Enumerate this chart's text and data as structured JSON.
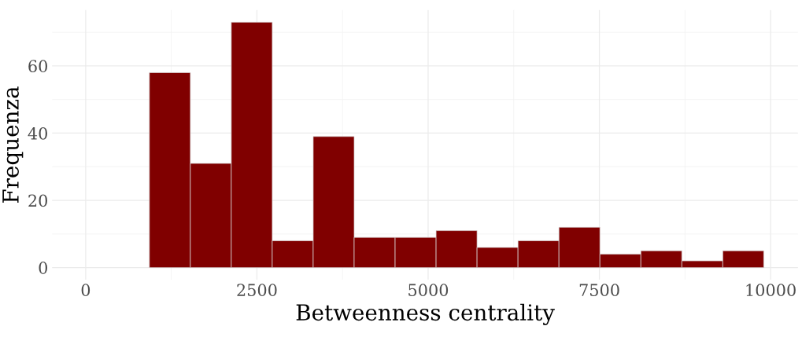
{
  "chart_data": {
    "type": "histogram",
    "xlabel": "Betweenness centrality",
    "ylabel": "Frequenza",
    "color": "#800000",
    "bins": [
      930,
      1528,
      2126,
      2724,
      3322,
      3920,
      4518,
      5116,
      5714,
      6312,
      6910,
      7508,
      8106,
      8704,
      9302,
      9900
    ],
    "values": [
      58,
      31,
      73,
      8,
      39,
      9,
      9,
      11,
      6,
      8,
      12,
      4,
      5,
      2,
      5
    ],
    "xlim": [
      -490,
      10400
    ],
    "ylim": [
      -3.6,
      76.6
    ],
    "xticks": [
      0,
      2500,
      5000,
      7500,
      10000
    ],
    "yticks": [
      0,
      20,
      40,
      60
    ],
    "grid": true
  }
}
